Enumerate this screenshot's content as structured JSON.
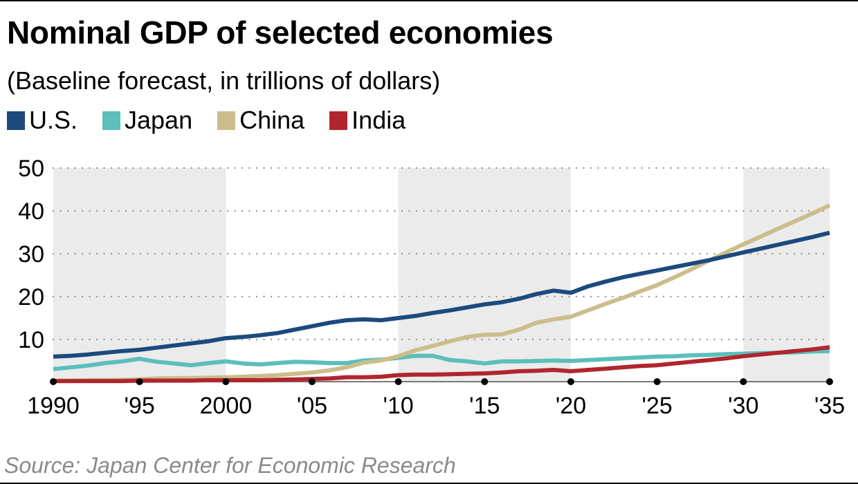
{
  "title": "Nominal GDP of selected economies",
  "subtitle": "(Baseline forecast, in trillions of dollars)",
  "source": "Source: Japan Center for Economic Research",
  "legend": [
    {
      "label": "U.S.",
      "color": "#1c4a7e"
    },
    {
      "label": "Japan",
      "color": "#5bbfbc"
    },
    {
      "label": "China",
      "color": "#cbbd8c"
    },
    {
      "label": "India",
      "color": "#b0262e"
    }
  ],
  "chart_data": {
    "type": "line",
    "title": "Nominal GDP of selected economies",
    "subtitle": "(Baseline forecast, in trillions of dollars)",
    "xlabel": "",
    "ylabel": "Trillions of dollars",
    "xlim": [
      1990,
      2035
    ],
    "ylim": [
      0,
      50
    ],
    "yticks": [
      10,
      20,
      30,
      40,
      50
    ],
    "ytick_labels": [
      "10",
      "20",
      "30",
      "40",
      "50"
    ],
    "xticks": [
      1990,
      1995,
      2000,
      2005,
      2010,
      2015,
      2020,
      2025,
      2030,
      2035
    ],
    "xtick_labels": [
      "1990",
      "'95",
      "2000",
      "'05",
      "'10",
      "'15",
      "'20",
      "'25",
      "'30",
      "'35"
    ],
    "grid": "horizontal dotted",
    "shaded_bands": [
      [
        1990,
        2000
      ],
      [
        2010,
        2020
      ],
      [
        2030,
        2035
      ]
    ],
    "legend_position": "top-left",
    "x": [
      1990,
      1991,
      1992,
      1993,
      1994,
      1995,
      1996,
      1997,
      1998,
      1999,
      2000,
      2001,
      2002,
      2003,
      2004,
      2005,
      2006,
      2007,
      2008,
      2009,
      2010,
      2011,
      2012,
      2013,
      2014,
      2015,
      2016,
      2017,
      2018,
      2019,
      2020,
      2021,
      2022,
      2023,
      2024,
      2025,
      2026,
      2027,
      2028,
      2029,
      2030,
      2031,
      2032,
      2033,
      2034,
      2035
    ],
    "series": [
      {
        "name": "U.S.",
        "color": "#1c4a7e",
        "values": [
          6.0,
          6.2,
          6.5,
          6.9,
          7.3,
          7.6,
          8.1,
          8.6,
          9.1,
          9.6,
          10.3,
          10.6,
          11.0,
          11.5,
          12.3,
          13.1,
          13.9,
          14.5,
          14.7,
          14.5,
          15.0,
          15.5,
          16.2,
          16.8,
          17.5,
          18.2,
          18.7,
          19.5,
          20.6,
          21.4,
          20.9,
          22.4,
          23.5,
          24.5,
          25.3,
          26.1,
          26.9,
          27.7,
          28.5,
          29.4,
          30.3,
          31.2,
          32.1,
          33.0,
          33.9,
          34.9
        ]
      },
      {
        "name": "Japan",
        "color": "#5bbfbc",
        "values": [
          3.1,
          3.5,
          3.9,
          4.5,
          4.9,
          5.5,
          4.8,
          4.4,
          4.0,
          4.5,
          4.9,
          4.4,
          4.2,
          4.5,
          4.8,
          4.7,
          4.5,
          4.5,
          5.1,
          5.3,
          5.7,
          6.2,
          6.2,
          5.2,
          4.9,
          4.4,
          4.9,
          4.9,
          5.0,
          5.1,
          5.0,
          5.2,
          5.4,
          5.6,
          5.8,
          6.0,
          6.1,
          6.3,
          6.4,
          6.6,
          6.7,
          6.8,
          6.9,
          7.0,
          7.2,
          7.3
        ]
      },
      {
        "name": "China",
        "color": "#cbbd8c",
        "values": [
          0.4,
          0.4,
          0.5,
          0.5,
          0.6,
          0.7,
          0.9,
          1.0,
          1.0,
          1.1,
          1.2,
          1.3,
          1.5,
          1.7,
          2.0,
          2.3,
          2.8,
          3.5,
          4.6,
          5.1,
          6.1,
          7.5,
          8.5,
          9.6,
          10.6,
          11.1,
          11.2,
          12.3,
          13.9,
          14.7,
          15.3,
          16.8,
          18.3,
          19.7,
          21.2,
          22.7,
          24.5,
          26.4,
          28.4,
          30.3,
          32.2,
          34.0,
          35.8,
          37.6,
          39.4,
          41.3
        ]
      },
      {
        "name": "India",
        "color": "#b0262e",
        "values": [
          0.3,
          0.3,
          0.3,
          0.3,
          0.3,
          0.4,
          0.4,
          0.4,
          0.4,
          0.5,
          0.5,
          0.5,
          0.5,
          0.6,
          0.7,
          0.8,
          0.9,
          1.2,
          1.2,
          1.3,
          1.7,
          1.8,
          1.8,
          1.9,
          2.0,
          2.1,
          2.3,
          2.6,
          2.7,
          2.9,
          2.6,
          2.9,
          3.2,
          3.5,
          3.8,
          4.0,
          4.4,
          4.8,
          5.2,
          5.6,
          6.1,
          6.5,
          6.9,
          7.3,
          7.7,
          8.2
        ]
      }
    ]
  }
}
